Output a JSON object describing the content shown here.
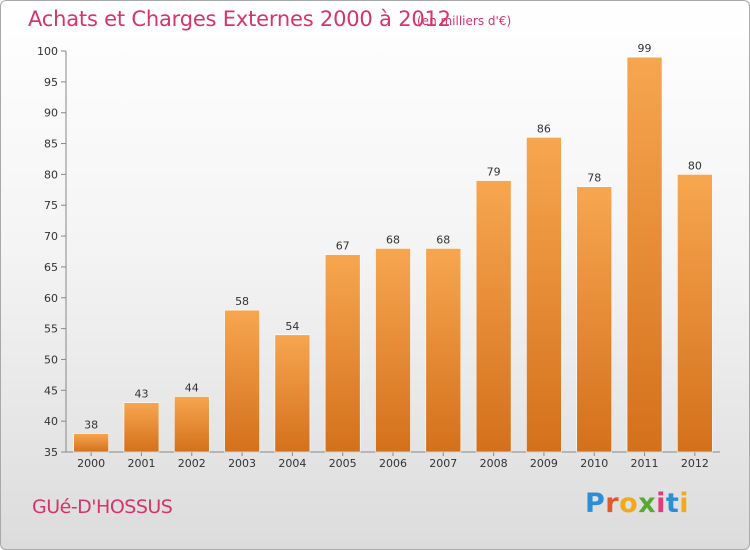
{
  "header": {
    "title": "Achats et Charges Externes 2000 à 2012",
    "subtitle": "(en milliers d'€)"
  },
  "footer": {
    "commune": "GUé-D'HOSSUS",
    "logo": {
      "letters": [
        "P",
        "r",
        "o",
        "x",
        "i",
        "t",
        "i"
      ],
      "colors": [
        "#2a8fd6",
        "#e05a2a",
        "#f2a91c",
        "#5aa832",
        "#e03b7a",
        "#2a8fd6",
        "#f2a91c"
      ]
    }
  },
  "chart_data": {
    "type": "bar",
    "categories": [
      "2000",
      "2001",
      "2002",
      "2003",
      "2004",
      "2005",
      "2006",
      "2007",
      "2008",
      "2009",
      "2010",
      "2011",
      "2012"
    ],
    "values": [
      38,
      43,
      44,
      58,
      54,
      67,
      68,
      68,
      79,
      86,
      78,
      99,
      80
    ],
    "ylim": [
      35,
      100
    ],
    "yticks": [
      35,
      40,
      45,
      50,
      55,
      60,
      65,
      70,
      75,
      80,
      85,
      90,
      95,
      100
    ],
    "grid": false,
    "data_labels": true,
    "colors": {
      "bar_light": "#f7a650",
      "bar_dark": "#d4701c",
      "axis": "#888888",
      "text": "#333333"
    }
  }
}
